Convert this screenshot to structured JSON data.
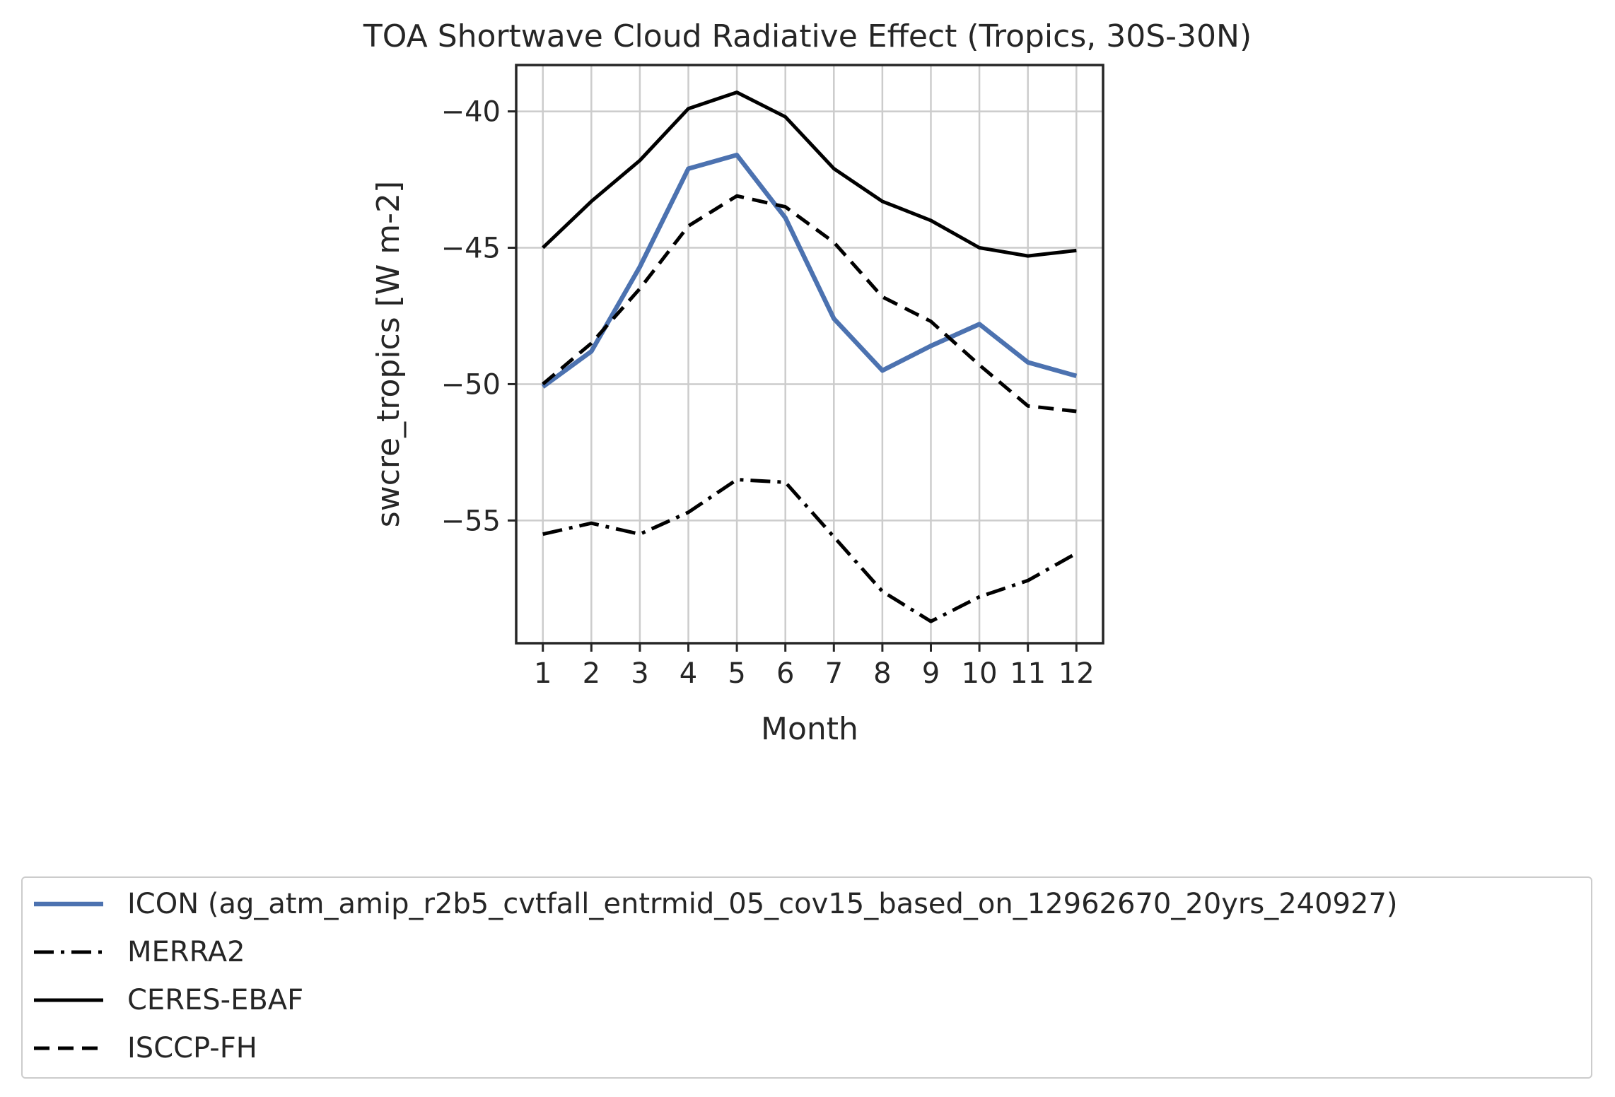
{
  "chart_data": {
    "type": "line",
    "title": "TOA Shortwave Cloud Radiative Effect (Tropics, 30S-30N)",
    "xlabel": "Month",
    "ylabel": "swcre_tropics [W m-2]",
    "x": [
      1,
      2,
      3,
      4,
      5,
      6,
      7,
      8,
      9,
      10,
      11,
      12
    ],
    "x_tick_labels": [
      "1",
      "2",
      "3",
      "4",
      "5",
      "6",
      "7",
      "8",
      "9",
      "10",
      "11",
      "12"
    ],
    "y_ticks": [
      -40,
      -45,
      -50,
      -55
    ],
    "y_tick_labels": [
      "−40",
      "−45",
      "−50",
      "−55"
    ],
    "xlim": [
      0.45,
      12.55
    ],
    "ylim": [
      -59.5,
      -38.3
    ],
    "grid": true,
    "legend_position": "bottom",
    "series": [
      {
        "name": "ICON (ag_atm_amip_r2b5_cvtfall_entrmid_05_cov15_based_on_12962670_20yrs_240927)",
        "values": [
          -50.1,
          -48.8,
          -45.7,
          -42.1,
          -41.6,
          -43.9,
          -47.6,
          -49.5,
          -48.6,
          -47.8,
          -49.2,
          -49.7
        ],
        "color": "#4c72b0",
        "style": "solid"
      },
      {
        "name": "MERRA2",
        "values": [
          -55.5,
          -55.1,
          -55.5,
          -54.7,
          -53.5,
          -53.6,
          -55.6,
          -57.6,
          -58.7,
          -57.8,
          -57.2,
          -56.2
        ],
        "color": "#000000",
        "style": "dashdot"
      },
      {
        "name": "CERES-EBAF",
        "values": [
          -45.0,
          -43.3,
          -41.8,
          -39.9,
          -39.3,
          -40.2,
          -42.1,
          -43.3,
          -44.0,
          -45.0,
          -45.3,
          -45.1
        ],
        "color": "#000000",
        "style": "solid"
      },
      {
        "name": "ISCCP-FH",
        "values": [
          -50.0,
          -48.5,
          -46.5,
          -44.2,
          -43.1,
          -43.5,
          -44.8,
          -46.8,
          -47.7,
          -49.3,
          -50.8,
          -51.0
        ],
        "color": "#000000",
        "style": "dashed"
      }
    ]
  }
}
